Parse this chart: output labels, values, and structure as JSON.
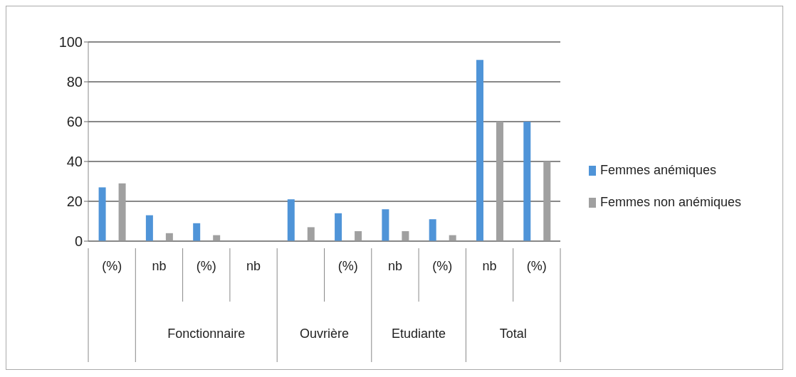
{
  "chart_data": {
    "type": "bar",
    "categories": [
      "(%)",
      "nb",
      "(%)",
      "nb",
      null,
      "(%)",
      "nb",
      "(%)",
      "nb",
      "(%)"
    ],
    "series": [
      {
        "name": "Femmes anémiques",
        "color": "#4f94d8",
        "values": [
          27,
          13,
          9,
          null,
          21,
          14,
          16,
          11,
          91,
          60
        ]
      },
      {
        "name": "Femmes non anémiques",
        "color": "#a0a0a0",
        "values": [
          29,
          4,
          3,
          null,
          7,
          5,
          5,
          3,
          60,
          40
        ]
      }
    ],
    "annotations": [
      "Fonctionnaire",
      "Ouvrière",
      "Etudiante",
      "Total"
    ],
    "ylim": [
      0,
      100
    ],
    "yticks": [
      0,
      20,
      40,
      60,
      80,
      100
    ],
    "grid": "y",
    "legend": "right"
  }
}
